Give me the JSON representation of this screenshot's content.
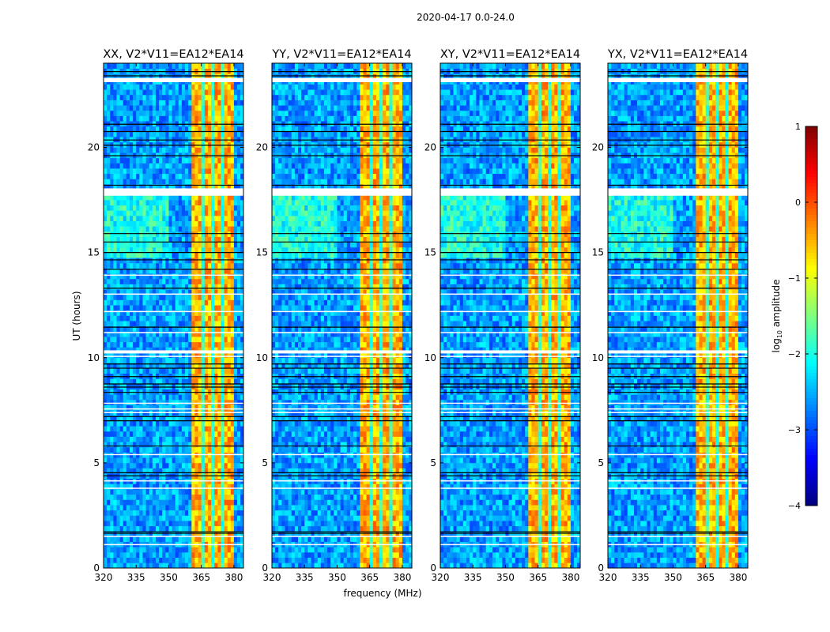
{
  "chart_data": {
    "type": "heatmap",
    "suptitle": "2020-04-17 0.0-24.0",
    "xlabel": "frequency (MHz)",
    "ylabel": "UT (hours)",
    "xlim": [
      320,
      384.4
    ],
    "ylim": [
      0,
      24
    ],
    "xticks": [
      320,
      335,
      350,
      365,
      380
    ],
    "yticks": [
      0,
      5,
      10,
      15,
      20
    ],
    "panels": [
      {
        "title": "XX, V2*V11=EA12*EA14"
      },
      {
        "title": "YY, V2*V11=EA12*EA14"
      },
      {
        "title": "XY, V2*V11=EA12*EA14"
      },
      {
        "title": "YX, V2*V11=EA12*EA14"
      }
    ],
    "colorbar": {
      "label_main": "log",
      "label_sub": "10",
      "label_rest": " amplitude",
      "range": [
        -4,
        1
      ],
      "ticks": [
        1,
        0,
        -1,
        -2,
        -3,
        -4
      ],
      "tick_labels": [
        "1",
        "0",
        "−1",
        "−2",
        "−3",
        "−4"
      ],
      "colormap": "jet"
    },
    "background_level": -2.6,
    "rfi_band": {
      "from_mhz": 360.7,
      "to_mhz": 380.4,
      "level": -0.5
    },
    "band_gaps_mhz": [
      365.5,
      370.5,
      375.3
    ],
    "flagged_hours": [
      [
        23.1,
        23.3
      ],
      [
        17.7,
        18.05
      ],
      [
        13.9,
        13.95
      ],
      [
        13.0,
        13.05
      ],
      [
        10.2,
        10.35
      ],
      [
        10.05,
        10.09
      ],
      [
        12.18,
        12.22
      ],
      [
        11.18,
        11.22
      ],
      [
        7.82,
        7.86
      ],
      [
        7.55,
        7.59
      ],
      [
        7.38,
        7.42
      ],
      [
        5.38,
        5.42
      ],
      [
        4.13,
        4.17
      ],
      [
        3.78,
        3.82
      ],
      [
        1.48,
        1.53
      ],
      [
        1.1,
        1.14
      ]
    ],
    "dark_lines_hours": [
      23.6,
      23.4,
      21.1,
      20.75,
      20.35,
      20.1,
      19.6,
      18.2,
      15.9,
      15.5,
      15.0,
      14.65,
      14.2,
      13.3,
      11.45,
      9.7,
      9.5,
      9.1,
      8.75,
      8.6,
      8.35,
      7.2,
      7.0,
      5.8,
      4.53,
      4.38,
      1.72,
      1.65
    ]
  }
}
